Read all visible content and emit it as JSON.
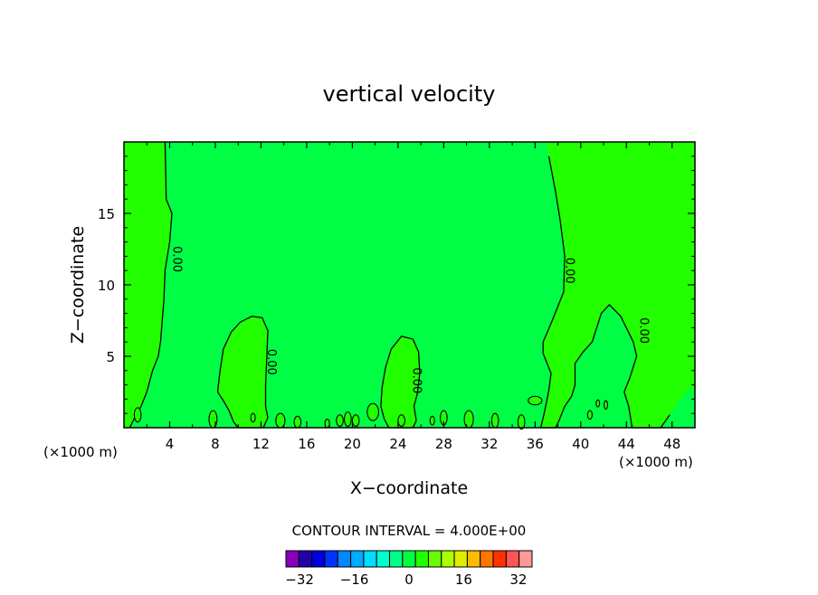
{
  "chart_data": {
    "type": "heatmap",
    "title": "vertical velocity",
    "xlabel": "X−coordinate",
    "ylabel": "Z−coordinate",
    "x_unit_left": "(×1000 m)",
    "x_unit_right": "(×1000 m)",
    "xlim": [
      0,
      50
    ],
    "ylim": [
      0,
      20
    ],
    "x_ticks": [
      4,
      8,
      12,
      16,
      20,
      24,
      28,
      32,
      36,
      40,
      44,
      48
    ],
    "y_ticks": [
      5,
      10,
      15
    ],
    "grid": false,
    "contour_interval_text": "CONTOUR INTERVAL = 4.000E+00",
    "contour_label": "0.00",
    "zero_contour_labels": [
      {
        "x": 4.3,
        "y": 11.8,
        "text": "0.00"
      },
      {
        "x": 12.6,
        "y": 4.6,
        "text": "0.00"
      },
      {
        "x": 25.3,
        "y": 3.3,
        "text": "0.00"
      },
      {
        "x": 38.7,
        "y": 11.0,
        "text": "0.00"
      },
      {
        "x": 45.2,
        "y": 6.8,
        "text": "0.00"
      }
    ],
    "regions": [
      {
        "name": "near-zero positive",
        "color": "#22ff00"
      },
      {
        "name": "near-zero negative",
        "color": "#00ff44"
      }
    ],
    "colorbar": {
      "levels": [
        -36,
        -32,
        -28,
        -24,
        -20,
        -16,
        -12,
        -8,
        -4,
        0,
        4,
        8,
        12,
        16,
        20,
        24,
        28,
        32,
        36
      ],
      "tick_labels": [
        "−32",
        "−16",
        "0",
        "16",
        "32"
      ],
      "tick_values": [
        -32,
        -16,
        0,
        16,
        32
      ],
      "colors": [
        "#8800bb",
        "#2200aa",
        "#0000dd",
        "#0033ff",
        "#0088ff",
        "#00aaff",
        "#00ddff",
        "#00ffcc",
        "#00ff88",
        "#00ff44",
        "#22ff00",
        "#66ff00",
        "#aaff00",
        "#ddee00",
        "#ffbb00",
        "#ff7700",
        "#ff3300",
        "#ff5555",
        "#ff9999"
      ]
    }
  }
}
